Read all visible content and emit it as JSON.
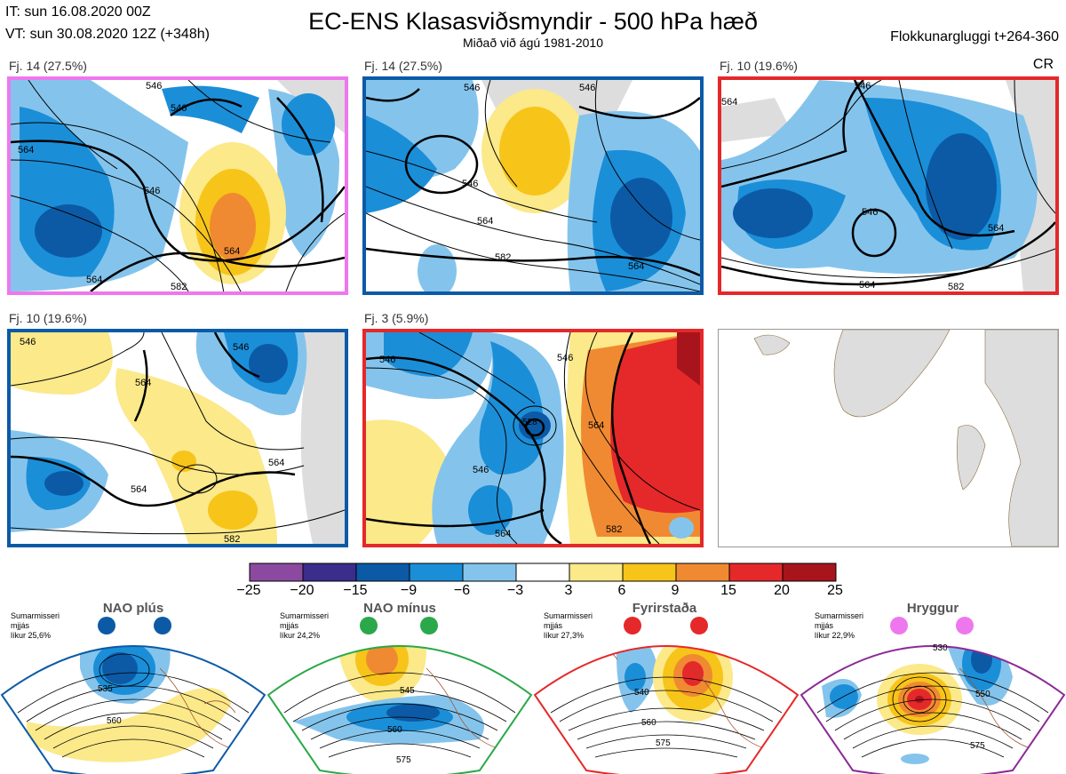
{
  "header": {
    "it": "IT: sun 16.08.2020 00Z",
    "vt": "VT: sun 30.08.2020 12Z  (+348h)",
    "title": "EC-ENS Klasasviðsmyndir - 500 hPa hæð",
    "subtitle": "Miðað við ágú 1981-2010",
    "window": "Flokkunargluggi t+264-360",
    "cr": "CR"
  },
  "panels": [
    {
      "caption": "Fj. 14 (27.5%)",
      "border": "#ee77ee",
      "contours": [
        "546",
        "546",
        "564",
        "564",
        "546",
        "564",
        "582"
      ]
    },
    {
      "caption": "Fj. 14 (27.5%)",
      "border": "#0c5aa6",
      "contours": [
        "546",
        "546",
        "546",
        "564",
        "582",
        "564"
      ]
    },
    {
      "caption": "Fj. 10 (19.6%)",
      "border": "#e5282a",
      "contours": [
        "564",
        "546",
        "546",
        "564",
        "564",
        "582"
      ]
    },
    {
      "caption": "Fj. 10 (19.6%)",
      "border": "#0c5aa6",
      "contours": [
        "546",
        "546",
        "564",
        "564",
        "564",
        "582"
      ]
    },
    {
      "caption": "Fj. 3 (5.9%)",
      "border": "#e5282a",
      "contours": [
        "546",
        "546",
        "528",
        "564",
        "546",
        "564",
        "582"
      ]
    },
    {
      "caption": "",
      "border": "#999999",
      "contours": []
    }
  ],
  "colorbar": {
    "labels": [
      "−25",
      "−20",
      "−15",
      "−9",
      "−6",
      "−3",
      "3",
      "6",
      "9",
      "15",
      "20",
      "25"
    ],
    "colors": [
      "#8b4aa0",
      "#3a2d8c",
      "#0c5aa6",
      "#1b8ed8",
      "#84c4ec",
      "#ffffff",
      "#fbe98a",
      "#f7c41a",
      "#f08a32",
      "#e5282a",
      "#a8141c"
    ]
  },
  "regimes": [
    {
      "name": "NAO plús",
      "season": "Sumarmisseri",
      "mean": "mjjás",
      "likur": "líkur 25,6%",
      "edge": "#0c5aa6",
      "dot": "#0c5aa6",
      "contours": [
        "535",
        "560"
      ]
    },
    {
      "name": "NAO mínus",
      "season": "Sumarmisseri",
      "mean": "mjjás",
      "likur": "líkur 24,2%",
      "edge": "#2aa84a",
      "dot": "#2aa84a",
      "contours": [
        "545",
        "560",
        "575"
      ]
    },
    {
      "name": "Fyrirstaða",
      "season": "Sumarmisseri",
      "mean": "mjjás",
      "likur": "líkur 27,3%",
      "edge": "#e5282a",
      "dot": "#e5282a",
      "contours": [
        "540",
        "560",
        "575"
      ]
    },
    {
      "name": "Hryggur",
      "season": "Sumarmisseri",
      "mean": "mjjás",
      "likur": "líkur 22,9%",
      "edge": "#8b2a96",
      "dot": "#ee77ee",
      "contours": [
        "530",
        "550",
        "575"
      ]
    }
  ]
}
